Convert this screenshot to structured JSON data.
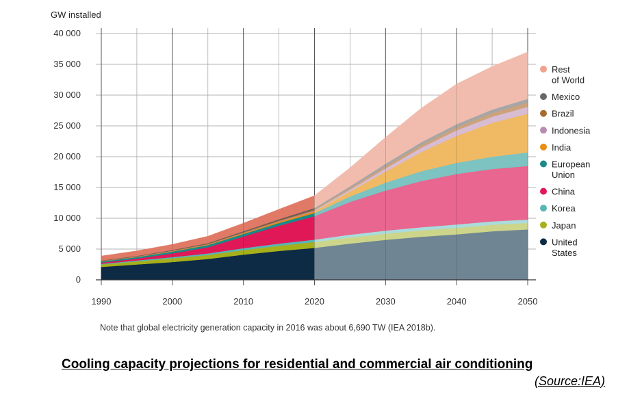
{
  "chart_data": {
    "type": "area",
    "stacked": true,
    "ylabel": "GW installed",
    "ylim": [
      0,
      40000
    ],
    "yticks": [
      "0",
      "5 000",
      "10 000",
      "15 000",
      "20 000",
      "25 000",
      "30 000",
      "35 000",
      "40 000"
    ],
    "xticks": [
      "1990",
      "2000",
      "2010",
      "2020",
      "2030",
      "2040",
      "2050"
    ],
    "xlim": [
      1990,
      2050
    ],
    "projection_start": 2020,
    "grid": true,
    "legend_position": "right",
    "x": [
      1990,
      1995,
      2000,
      2005,
      2010,
      2015,
      2020,
      2025,
      2030,
      2035,
      2040,
      2045,
      2050
    ],
    "series": [
      {
        "name": "United States",
        "color": "#0d2b45",
        "proj_color": "#6f8593",
        "values": [
          2100,
          2500,
          2900,
          3400,
          4100,
          4700,
          5200,
          5900,
          6500,
          7000,
          7400,
          7900,
          8200
        ]
      },
      {
        "name": "Japan",
        "color": "#a6b01b",
        "proj_color": "#cdd58a",
        "values": [
          400,
          500,
          600,
          650,
          750,
          850,
          950,
          1000,
          1000,
          1050,
          1050,
          1050,
          1050
        ]
      },
      {
        "name": "Korea",
        "color": "#57b7b5",
        "proj_color": "#a9dcdb",
        "values": [
          100,
          150,
          200,
          250,
          300,
          350,
          400,
          450,
          500,
          500,
          550,
          550,
          550
        ]
      },
      {
        "name": "China",
        "color": "#e11858",
        "proj_color": "#e8668f",
        "values": [
          200,
          300,
          600,
          1000,
          1900,
          2900,
          3800,
          5300,
          6500,
          7500,
          8200,
          8500,
          8700
        ]
      },
      {
        "name": "European Union",
        "color": "#1a8a8a",
        "proj_color": "#7cc3c1",
        "values": [
          200,
          250,
          300,
          350,
          400,
          450,
          500,
          900,
          1300,
          1600,
          1800,
          2000,
          2200
        ]
      },
      {
        "name": "India",
        "color": "#e88e10",
        "proj_color": "#f0ba64",
        "values": [
          50,
          50,
          80,
          100,
          150,
          200,
          300,
          800,
          1800,
          3100,
          4400,
          5500,
          6300
        ]
      },
      {
        "name": "Indonesia",
        "color": "#b88bb2",
        "proj_color": "#d7bcd3",
        "values": [
          20,
          30,
          40,
          50,
          70,
          100,
          150,
          300,
          500,
          700,
          900,
          1000,
          1100
        ]
      },
      {
        "name": "Brazil",
        "color": "#a56a2e",
        "proj_color": "#cda27b",
        "values": [
          50,
          60,
          70,
          90,
          110,
          140,
          170,
          250,
          350,
          450,
          500,
          600,
          700
        ]
      },
      {
        "name": "Mexico",
        "color": "#5e5e5e",
        "proj_color": "#a6a6a6",
        "values": [
          50,
          60,
          70,
          90,
          120,
          160,
          200,
          300,
          400,
          450,
          500,
          550,
          600
        ]
      },
      {
        "name": "Rest of World",
        "color": "#e07a66",
        "proj_color": "#f1bcae",
        "values": [
          700,
          800,
          900,
          1100,
          1300,
          1600,
          2000,
          3000,
          4300,
          5500,
          6500,
          7000,
          7600
        ]
      }
    ],
    "legend": [
      {
        "label": [
          "Rest",
          "of World"
        ],
        "color": "#f1a18e"
      },
      {
        "label": [
          "Mexico"
        ],
        "color": "#686868"
      },
      {
        "label": [
          "Brazil"
        ],
        "color": "#a56a2e"
      },
      {
        "label": [
          "Indonesia"
        ],
        "color": "#b88bb2"
      },
      {
        "label": [
          "India"
        ],
        "color": "#e88e10"
      },
      {
        "label": [
          "European",
          "Union"
        ],
        "color": "#1a8a8a"
      },
      {
        "label": [
          "China"
        ],
        "color": "#e11858"
      },
      {
        "label": [
          "Korea"
        ],
        "color": "#57b7b5"
      },
      {
        "label": [
          "Japan"
        ],
        "color": "#a6b01b"
      },
      {
        "label": [
          "United",
          "States"
        ],
        "color": "#0d2b45"
      }
    ]
  },
  "note": "Note that global electricity generation capacity in 2016 was about 6,690 TW (IEA 2018b).",
  "caption": "Cooling capacity projections for residential and commercial air conditioning",
  "source": "(Source:IEA)"
}
